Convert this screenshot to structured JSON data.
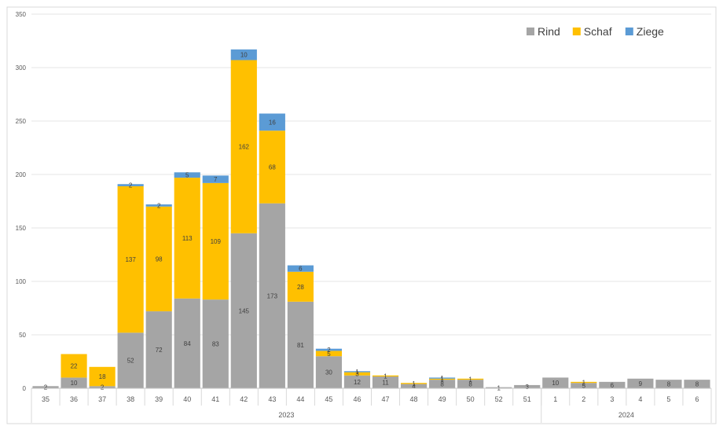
{
  "chart_data": {
    "type": "bar",
    "stacked": true,
    "title": "",
    "xlabel": "",
    "ylabel": "",
    "ylim": [
      0,
      350
    ],
    "y_ticks": [
      0,
      50,
      100,
      150,
      200,
      250,
      300,
      350
    ],
    "grid": true,
    "legend_position": "top-right",
    "categories": [
      "35",
      "36",
      "37",
      "38",
      "39",
      "40",
      "41",
      "42",
      "43",
      "44",
      "45",
      "46",
      "47",
      "48",
      "49",
      "50",
      "52",
      "51",
      "1",
      "2",
      "3",
      "4",
      "5",
      "6"
    ],
    "groups": [
      {
        "label": "2023",
        "count": 18
      },
      {
        "label": "2024",
        "count": 6
      }
    ],
    "series": [
      {
        "name": "Rind",
        "color": "#a5a5a5",
        "values": [
          2,
          10,
          2,
          52,
          72,
          84,
          83,
          145,
          173,
          81,
          30,
          12,
          11,
          4,
          8,
          8,
          1,
          3,
          10,
          5,
          6,
          9,
          8,
          8
        ]
      },
      {
        "name": "Schaf",
        "color": "#ffc000",
        "values": [
          0,
          22,
          18,
          137,
          98,
          113,
          109,
          162,
          68,
          28,
          5,
          3,
          1,
          1,
          1,
          1,
          0,
          0,
          0,
          1,
          0,
          0,
          0,
          0
        ]
      },
      {
        "name": "Ziege",
        "color": "#5b9bd5",
        "values": [
          0,
          0,
          0,
          2,
          2,
          5,
          7,
          10,
          16,
          6,
          2,
          1,
          0,
          0,
          1,
          0,
          0,
          0,
          0,
          0,
          0,
          0,
          0,
          0
        ]
      }
    ],
    "data_labels": {
      "Rind": [
        "2",
        "10",
        "2",
        "52",
        "72",
        "84",
        "83",
        "145",
        "173",
        "81",
        "30",
        "12",
        "11",
        "4",
        "8",
        "8",
        "1",
        "3",
        "10",
        "5",
        "6",
        "9",
        "8",
        "8"
      ],
      "Schaf": [
        "",
        "22",
        "18",
        "137",
        "98",
        "113",
        "109",
        "162",
        "68",
        "28",
        "5",
        "3",
        "1",
        "1",
        "1",
        "1",
        "",
        "",
        "",
        "1",
        "",
        "",
        "",
        ""
      ],
      "Ziege": [
        "",
        "",
        "",
        "2",
        "2",
        "5",
        "7",
        "10",
        "16",
        "6",
        "2",
        "1",
        "",
        "",
        "1",
        "",
        "",
        "",
        "",
        "",
        "",
        "",
        "",
        ""
      ]
    }
  }
}
